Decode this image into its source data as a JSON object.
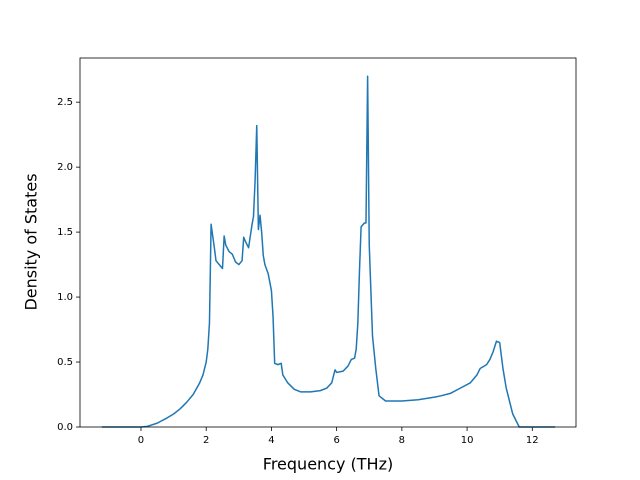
{
  "chart_data": {
    "type": "line",
    "xlabel": "Frequency (THz)",
    "ylabel": "Density of States",
    "x": [
      -1.2,
      0,
      0.2,
      0.5,
      0.8,
      1.0,
      1.2,
      1.4,
      1.6,
      1.8,
      1.9,
      2.0,
      2.05,
      2.1,
      2.15,
      2.2,
      2.25,
      2.3,
      2.4,
      2.5,
      2.55,
      2.6,
      2.7,
      2.8,
      2.9,
      3.0,
      3.1,
      3.15,
      3.2,
      3.3,
      3.4,
      3.45,
      3.5,
      3.55,
      3.6,
      3.65,
      3.7,
      3.75,
      3.8,
      3.9,
      4.0,
      4.05,
      4.1,
      4.2,
      4.3,
      4.35,
      4.5,
      4.7,
      4.9,
      5.2,
      5.5,
      5.7,
      5.85,
      5.95,
      6.0,
      6.2,
      6.35,
      6.45,
      6.55,
      6.6,
      6.65,
      6.7,
      6.75,
      6.85,
      6.9,
      6.95,
      7.0,
      7.1,
      7.2,
      7.3,
      7.5,
      8.0,
      8.5,
      9.0,
      9.2,
      9.5,
      9.8,
      10.1,
      10.3,
      10.4,
      10.6,
      10.7,
      10.8,
      10.9,
      11.0,
      11.1,
      11.2,
      11.4,
      11.6,
      12.7
    ],
    "series": [
      {
        "color": "#1f77b4",
        "values": [
          0,
          0,
          0.005,
          0.03,
          0.07,
          0.1,
          0.14,
          0.19,
          0.25,
          0.34,
          0.4,
          0.5,
          0.6,
          0.8,
          1.56,
          1.47,
          1.38,
          1.28,
          1.25,
          1.22,
          1.47,
          1.4,
          1.35,
          1.33,
          1.27,
          1.25,
          1.28,
          1.46,
          1.43,
          1.38,
          1.55,
          1.62,
          1.9,
          2.32,
          1.52,
          1.63,
          1.5,
          1.32,
          1.25,
          1.18,
          1.05,
          0.85,
          0.49,
          0.48,
          0.49,
          0.4,
          0.34,
          0.29,
          0.27,
          0.27,
          0.28,
          0.3,
          0.34,
          0.44,
          0.42,
          0.43,
          0.47,
          0.52,
          0.53,
          0.6,
          0.8,
          1.2,
          1.54,
          1.57,
          1.57,
          2.7,
          1.4,
          0.7,
          0.45,
          0.24,
          0.2,
          0.2,
          0.21,
          0.23,
          0.24,
          0.26,
          0.3,
          0.34,
          0.4,
          0.45,
          0.48,
          0.52,
          0.58,
          0.66,
          0.65,
          0.45,
          0.3,
          0.1,
          0,
          0
        ]
      }
    ],
    "xlim": [
      -1.87,
      13.34
    ],
    "ylim": [
      0,
      2.84
    ],
    "xticks": [
      0,
      2,
      4,
      6,
      8,
      10,
      12
    ],
    "yticks": [
      {
        "value": 0,
        "label": "0.0"
      },
      0.5,
      {
        "value": 1,
        "label": "1.0"
      },
      1.5,
      {
        "value": 2,
        "label": "2.0"
      },
      2.5
    ]
  }
}
